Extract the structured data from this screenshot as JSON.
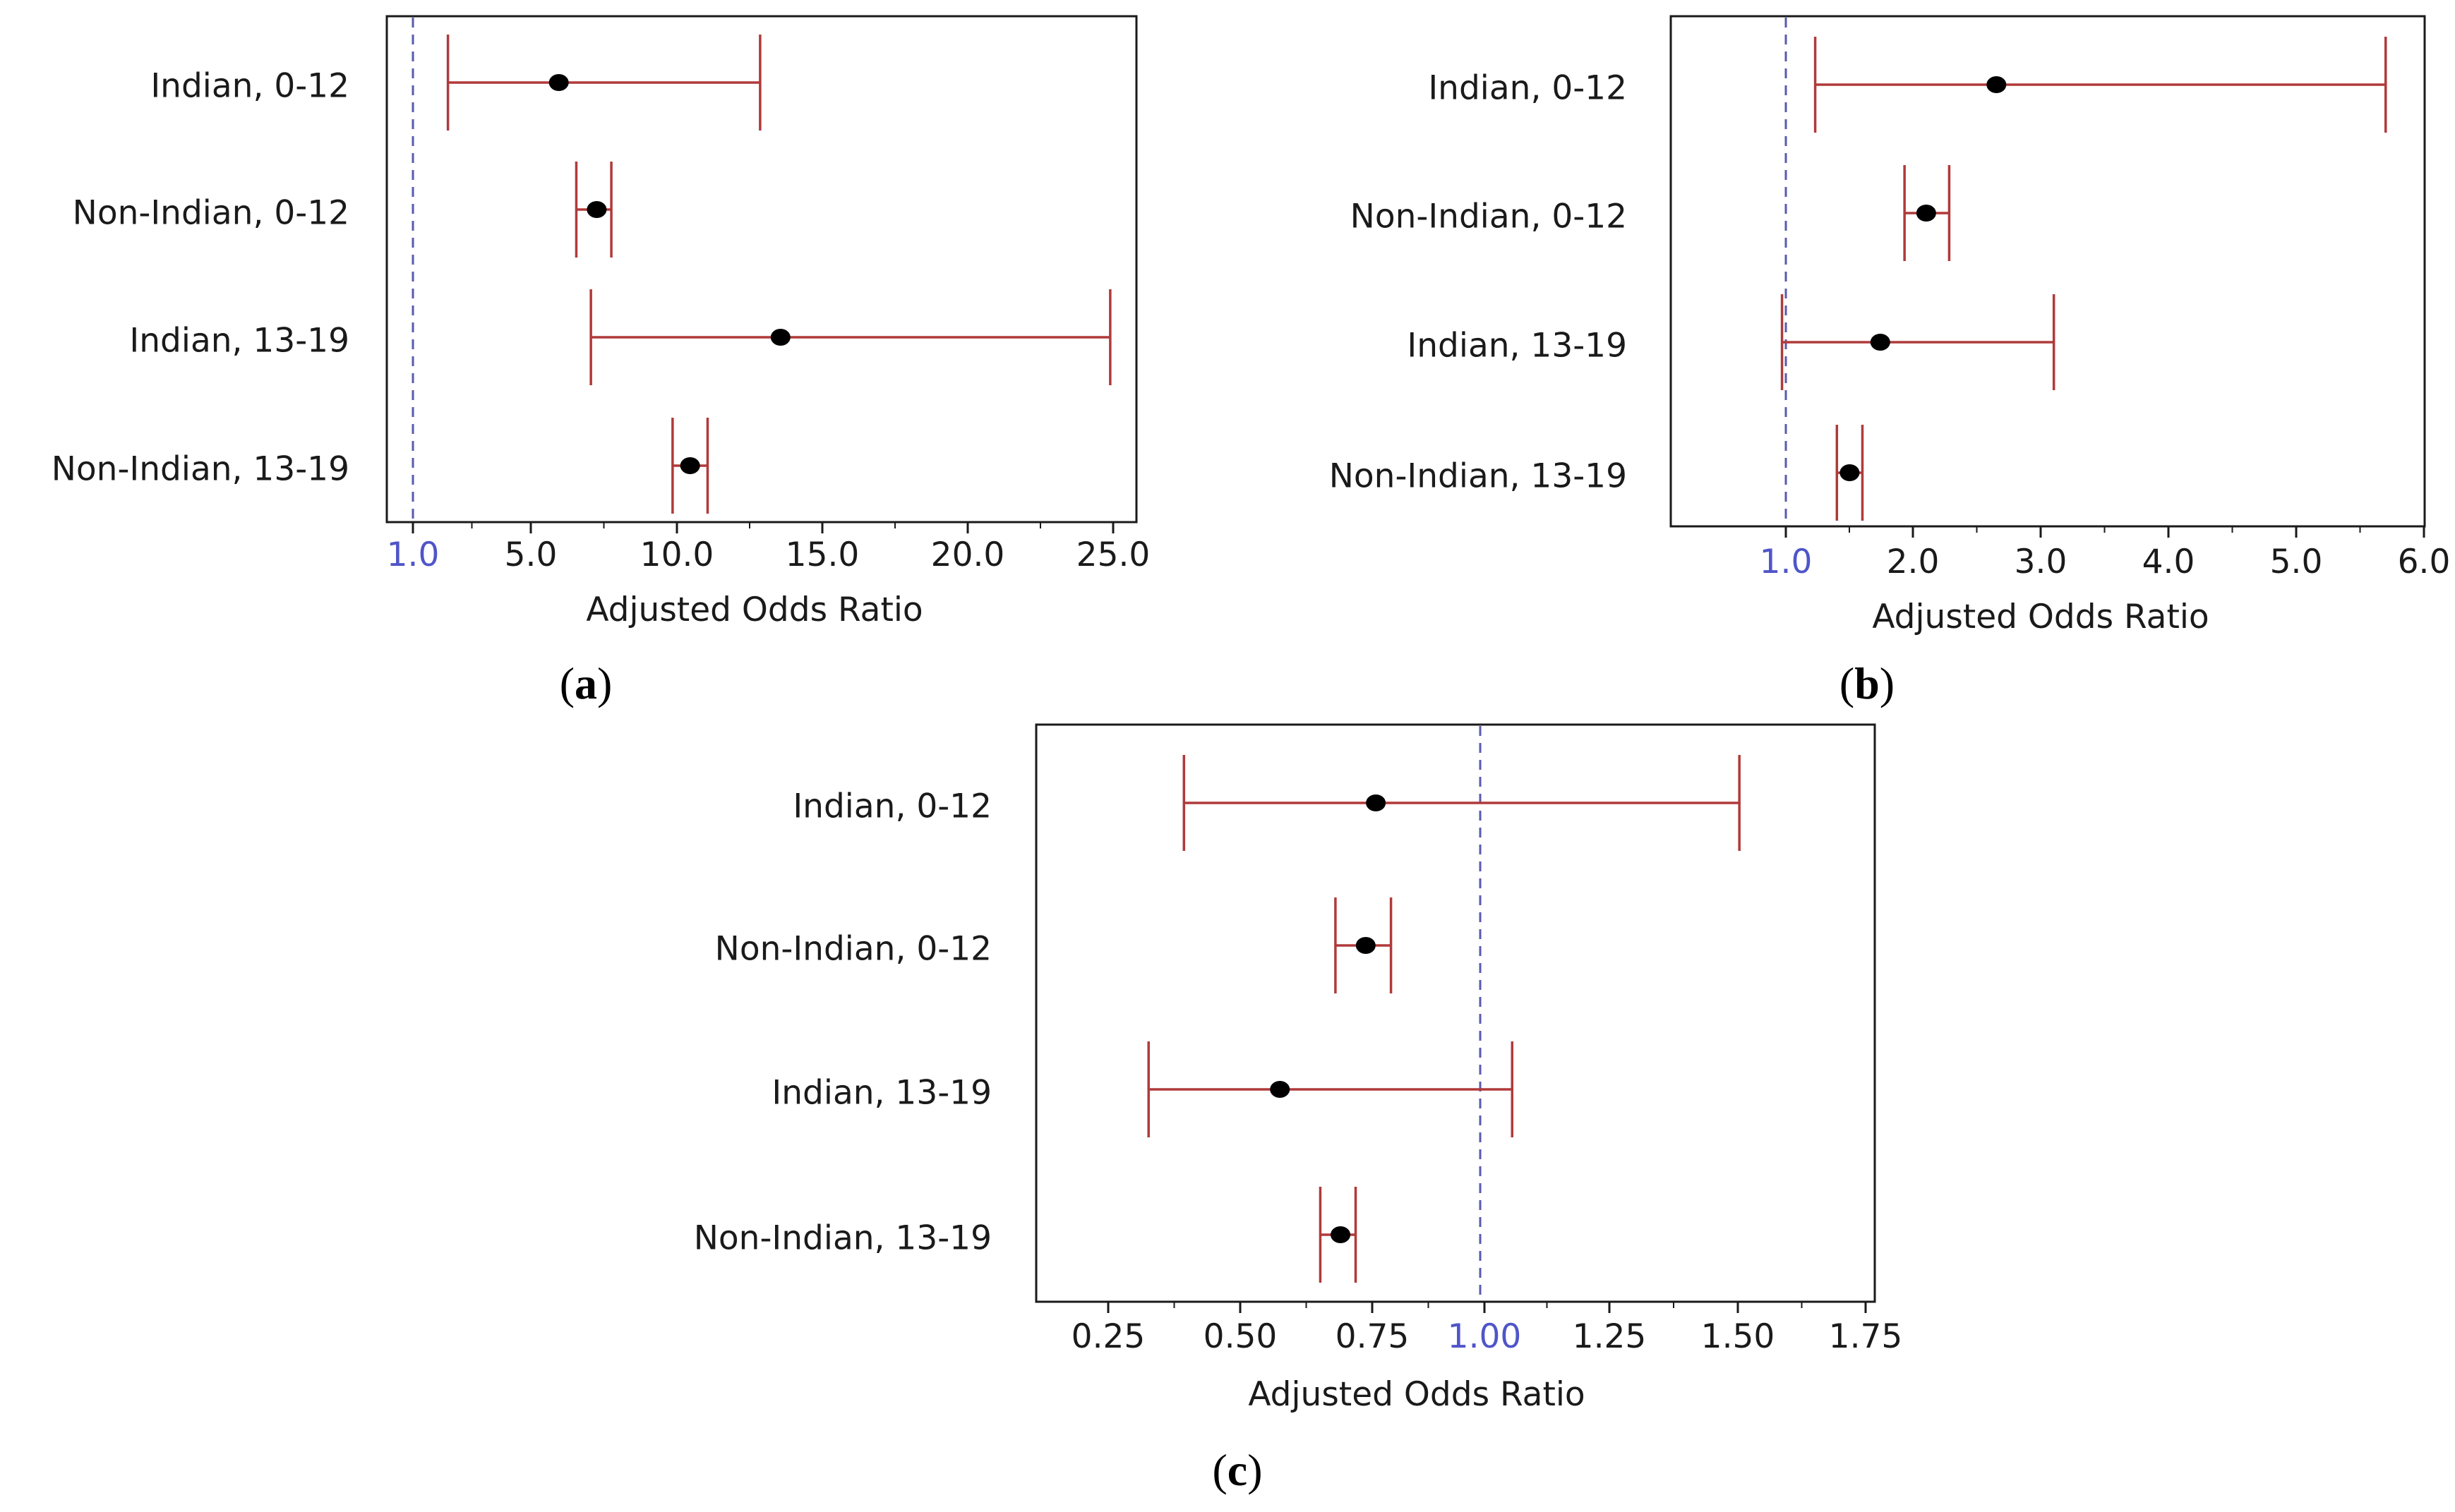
{
  "chart_data": [
    {
      "id": "a",
      "type": "forest",
      "caption": "a",
      "xlabel": "Adjusted Odds Ratio",
      "xlim": [
        0,
        25.0
      ],
      "reference_line": 1.0,
      "ticks": [
        "1.0",
        "5.0",
        "10.0",
        "15.0",
        "20.0",
        "25.0"
      ],
      "tick_values": [
        1.0,
        5.0,
        10.0,
        15.0,
        20.0,
        25.0
      ],
      "rows": [
        {
          "label": "Indian, 0-12",
          "estimate": 6.0,
          "lower": 2.2,
          "upper": 12.9
        },
        {
          "label": "Non-Indian, 0-12",
          "estimate": 7.3,
          "lower": 6.6,
          "upper": 7.8
        },
        {
          "label": "Indian, 13-19",
          "estimate": 13.6,
          "lower": 7.1,
          "upper": 24.9
        },
        {
          "label": "Non-Indian, 13-19",
          "estimate": 10.5,
          "lower": 9.9,
          "upper": 11.1
        }
      ]
    },
    {
      "id": "b",
      "type": "forest",
      "caption": "b",
      "xlabel": "Adjusted Odds Ratio",
      "xlim": [
        0.1,
        6.0
      ],
      "reference_line": 1.0,
      "ticks": [
        "1.0",
        "2.0",
        "3.0",
        "4.0",
        "5.0",
        "6.0"
      ],
      "tick_values": [
        1.0,
        2.0,
        3.0,
        4.0,
        5.0,
        6.0
      ],
      "rows": [
        {
          "label": "Indian, 0-12",
          "estimate": 2.65,
          "lower": 1.23,
          "upper": 5.7
        },
        {
          "label": "Non-Indian, 0-12",
          "estimate": 2.1,
          "lower": 1.93,
          "upper": 2.28
        },
        {
          "label": "Indian, 13-19",
          "estimate": 1.74,
          "lower": 0.97,
          "upper": 3.1
        },
        {
          "label": "Non-Indian, 13-19",
          "estimate": 1.5,
          "lower": 1.4,
          "upper": 1.6
        }
      ]
    },
    {
      "id": "c",
      "type": "forest",
      "caption": "c",
      "xlabel": "Adjusted Odds Ratio",
      "xlim": [
        0.15,
        1.8
      ],
      "reference_line": 1.0,
      "ticks": [
        "0.25",
        "0.50",
        "0.75",
        "1.00",
        "1.25",
        "1.50",
        "1.75"
      ],
      "tick_values": [
        0.25,
        0.5,
        0.75,
        1.0,
        1.25,
        1.5,
        1.75
      ],
      "rows": [
        {
          "label": "Indian, 0-12",
          "estimate": 0.78,
          "lower": 0.4,
          "upper": 1.5
        },
        {
          "label": "Non-Indian, 0-12",
          "estimate": 0.76,
          "lower": 0.7,
          "upper": 0.81
        },
        {
          "label": "Indian, 13-19",
          "estimate": 0.59,
          "lower": 0.33,
          "upper": 1.05
        },
        {
          "label": "Non-Indian, 13-19",
          "estimate": 0.71,
          "lower": 0.67,
          "upper": 0.74
        }
      ]
    }
  ]
}
